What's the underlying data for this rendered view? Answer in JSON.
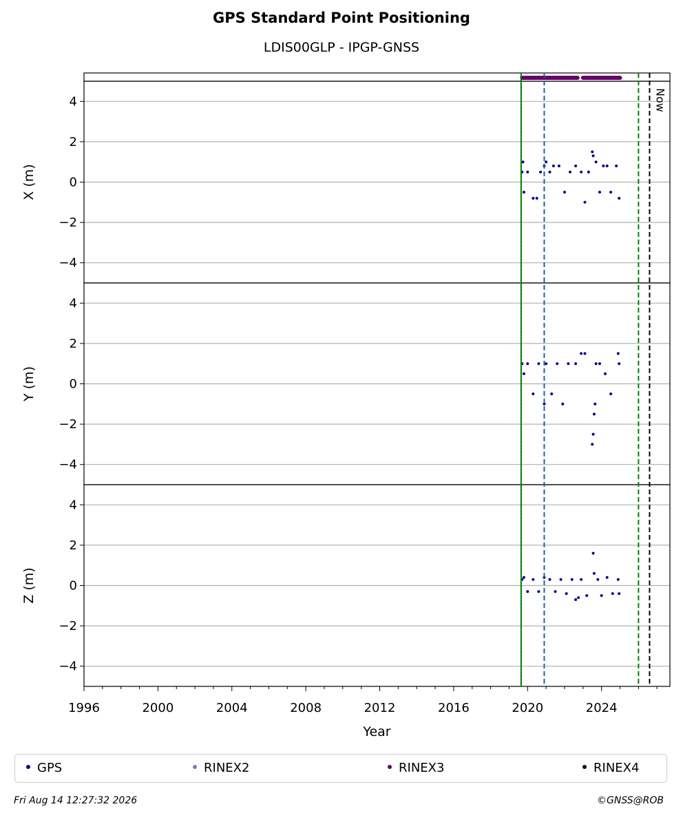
{
  "title": "GPS Standard Point Positioning",
  "subtitle": "LDIS00GLP - IPGP-GNSS",
  "footer": {
    "timestamp": "Fri Aug 14 12:27:32 2026",
    "credit": "©GNSS@ROB"
  },
  "legend": [
    {
      "label": "GPS",
      "color": "#00008b"
    },
    {
      "label": "RINEX2",
      "color": "#7b7bc0"
    },
    {
      "label": "RINEX3",
      "color": "#660066"
    },
    {
      "label": "RINEX4",
      "color": "#1a0a1a"
    }
  ],
  "chart_data": {
    "type": "scatter",
    "xlabel": "Year",
    "xlim": [
      1996,
      2027.7
    ],
    "xticks": [
      "1996",
      "2000",
      "2004",
      "2008",
      "2012",
      "2016",
      "2020",
      "2024"
    ],
    "grid": "horizontal",
    "legend_position": "bottom",
    "rinex3_availability": [
      [
        2019.7,
        2022.7
      ],
      [
        2023.0,
        2025.0
      ]
    ],
    "vlines": [
      {
        "x": 2019.65,
        "color": "#cc0000",
        "style": "dotted"
      },
      {
        "x": 2019.65,
        "color": "#008000",
        "style": "solid"
      },
      {
        "x": 2020.9,
        "color": "#1f5fa8",
        "style": "dashed"
      },
      {
        "x": 2026.0,
        "color": "#008000",
        "style": "dashed"
      },
      {
        "x": 2026.6,
        "color": "#000000",
        "style": "dashed",
        "label": "Now"
      }
    ],
    "panels": [
      {
        "ylabel": "X (m)",
        "ylim": [
          -5,
          5
        ],
        "yticks": [
          "4",
          "2",
          "0",
          "−2",
          "−4"
        ],
        "series": [
          {
            "name": "GPS",
            "x": [
              2019.7,
              2019.75,
              2019.8,
              2020.0,
              2020.3,
              2020.5,
              2020.7,
              2020.9,
              2021.0,
              2021.2,
              2021.4,
              2021.7,
              2022.0,
              2022.3,
              2022.6,
              2022.9,
              2023.1,
              2023.3,
              2023.5,
              2023.55,
              2023.7,
              2023.9,
              2024.1,
              2024.3,
              2024.5,
              2024.8,
              2024.95
            ],
            "y": [
              0.5,
              1.0,
              -0.5,
              0.5,
              -0.8,
              -0.8,
              0.5,
              0.8,
              1.0,
              0.5,
              0.8,
              0.8,
              -0.5,
              0.5,
              0.8,
              0.5,
              -1.0,
              0.5,
              1.5,
              1.3,
              1.0,
              -0.5,
              0.8,
              0.8,
              -0.5,
              0.8,
              -0.8
            ]
          }
        ]
      },
      {
        "ylabel": "Y (m)",
        "ylim": [
          -5,
          5
        ],
        "yticks": [
          "4",
          "2",
          "0",
          "−2",
          "−4"
        ],
        "series": [
          {
            "name": "GPS",
            "x": [
              2019.7,
              2019.8,
              2020.0,
              2020.3,
              2020.6,
              2020.9,
              2021.0,
              2021.3,
              2021.6,
              2021.9,
              2022.2,
              2022.6,
              2022.9,
              2023.1,
              2023.5,
              2023.55,
              2023.6,
              2023.65,
              2023.7,
              2023.9,
              2024.2,
              2024.5,
              2024.9,
              2024.95
            ],
            "y": [
              1.0,
              0.5,
              1.0,
              -0.5,
              1.0,
              -1.0,
              1.0,
              -0.5,
              1.0,
              -1.0,
              1.0,
              1.0,
              1.5,
              1.5,
              -3.0,
              -2.5,
              -1.5,
              -1.0,
              1.0,
              1.0,
              0.5,
              -0.5,
              1.5,
              1.0
            ]
          }
        ]
      },
      {
        "ylabel": "Z (m)",
        "ylim": [
          -5,
          5
        ],
        "yticks": [
          "4",
          "2",
          "0",
          "−2",
          "−4"
        ],
        "series": [
          {
            "name": "GPS",
            "x": [
              2019.7,
              2019.8,
              2020.0,
              2020.3,
              2020.6,
              2020.9,
              2021.2,
              2021.5,
              2021.8,
              2022.1,
              2022.4,
              2022.6,
              2022.75,
              2022.9,
              2023.2,
              2023.55,
              2023.6,
              2023.8,
              2024.0,
              2024.3,
              2024.6,
              2024.9,
              2024.95
            ],
            "y": [
              0.3,
              0.4,
              -0.3,
              0.3,
              -0.3,
              0.4,
              0.3,
              -0.3,
              0.3,
              -0.4,
              0.3,
              -0.7,
              -0.6,
              0.3,
              -0.5,
              1.6,
              0.6,
              0.3,
              -0.5,
              0.4,
              -0.4,
              0.3,
              -0.4
            ]
          }
        ]
      }
    ]
  }
}
